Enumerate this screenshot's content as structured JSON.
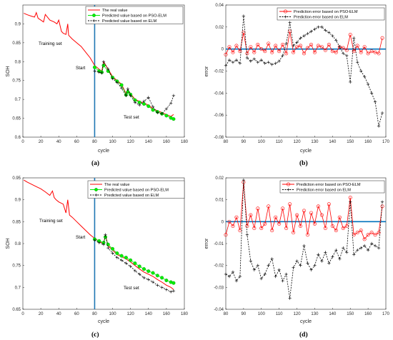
{
  "colors": {
    "real": "#ff0000",
    "pso": "#00ee00",
    "psoEdge": "#22aa22",
    "elm": "#000000",
    "err_pso": "#ff0000",
    "start_line": "#1f77b4",
    "zero_line": "#0072bd"
  },
  "chart_data": [
    {
      "type": "line",
      "panel": "a",
      "caption": "(a)",
      "xlabel": "cycle",
      "ylabel": "SOH",
      "xlim": [
        0,
        180
      ],
      "ylim": [
        0.6,
        0.95
      ],
      "xticks": [
        0,
        20,
        40,
        60,
        80,
        100,
        120,
        140,
        160,
        180
      ],
      "yticks": [
        0.6,
        0.65,
        0.7,
        0.75,
        0.8,
        0.85,
        0.9
      ],
      "legend": [
        "The real value",
        "Predicted value based on PSO-ELM",
        "Predicted value based on ELM"
      ],
      "legend_position": "top-right",
      "annotations": [
        "Training set",
        "Start",
        "Test set"
      ],
      "start_cycle": 80,
      "series": [
        {
          "name": "The real value",
          "x": [
            1,
            5,
            10,
            13,
            15,
            17,
            20,
            23,
            25,
            30,
            35,
            38,
            40,
            43,
            45,
            48,
            50,
            51,
            55,
            60,
            65,
            70,
            75,
            80,
            85,
            88,
            90,
            95,
            100,
            105,
            110,
            115,
            117,
            120,
            125,
            130,
            135,
            140,
            145,
            150,
            155,
            160,
            165,
            168
          ],
          "y": [
            0.928,
            0.924,
            0.92,
            0.918,
            0.93,
            0.915,
            0.91,
            0.905,
            0.925,
            0.91,
            0.905,
            0.9,
            0.91,
            0.88,
            0.875,
            0.872,
            0.9,
            0.87,
            0.86,
            0.85,
            0.84,
            0.825,
            0.81,
            0.79,
            0.78,
            0.775,
            0.8,
            0.78,
            0.76,
            0.75,
            0.74,
            0.715,
            0.725,
            0.715,
            0.7,
            0.695,
            0.69,
            0.685,
            0.675,
            0.67,
            0.665,
            0.66,
            0.655,
            0.66
          ]
        },
        {
          "name": "Predicted value based on PSO-ELM",
          "x": [
            80,
            85,
            88,
            90,
            95,
            100,
            105,
            110,
            115,
            117,
            120,
            125,
            130,
            135,
            140,
            145,
            150,
            155,
            160,
            165,
            168
          ],
          "y": [
            0.785,
            0.775,
            0.772,
            0.79,
            0.775,
            0.758,
            0.748,
            0.738,
            0.712,
            0.72,
            0.713,
            0.698,
            0.692,
            0.688,
            0.682,
            0.672,
            0.667,
            0.662,
            0.657,
            0.651,
            0.648
          ]
        },
        {
          "name": "Predicted value based on ELM",
          "x": [
            80,
            85,
            88,
            90,
            95,
            100,
            105,
            110,
            115,
            117,
            120,
            125,
            130,
            135,
            140,
            145,
            150,
            155,
            160,
            165,
            168
          ],
          "y": [
            0.775,
            0.772,
            0.77,
            0.8,
            0.78,
            0.755,
            0.745,
            0.73,
            0.71,
            0.728,
            0.71,
            0.692,
            0.685,
            0.695,
            0.705,
            0.68,
            0.665,
            0.662,
            0.675,
            0.69,
            0.71
          ]
        }
      ]
    },
    {
      "type": "line",
      "panel": "b",
      "caption": "(b)",
      "xlabel": "cycle",
      "ylabel": "error",
      "xlim": [
        80,
        170
      ],
      "ylim": [
        -0.08,
        0.04
      ],
      "xticks": [
        80,
        90,
        100,
        110,
        120,
        130,
        140,
        150,
        160,
        170
      ],
      "yticks": [
        -0.08,
        -0.06,
        -0.04,
        -0.02,
        0,
        0.02,
        0.04
      ],
      "legend": [
        "Prediction error based on PSO-ELM",
        "Prediction error based on ELM"
      ],
      "legend_position": "top-right",
      "series": [
        {
          "name": "Prediction error based on PSO-ELM",
          "x": [
            80,
            82,
            84,
            86,
            88,
            90,
            92,
            94,
            96,
            98,
            100,
            102,
            104,
            106,
            108,
            110,
            112,
            114,
            116,
            118,
            120,
            122,
            124,
            126,
            128,
            130,
            132,
            134,
            136,
            138,
            140,
            142,
            144,
            146,
            148,
            150,
            152,
            154,
            156,
            158,
            160,
            162,
            164,
            166,
            168
          ],
          "y": [
            -0.005,
            0.002,
            -0.003,
            0.003,
            -0.002,
            0.015,
            -0.004,
            0.002,
            -0.003,
            0.004,
            0.0,
            -0.002,
            0.005,
            -0.003,
            0.003,
            -0.002,
            0.004,
            -0.004,
            0.016,
            -0.003,
            0.002,
            0.003,
            -0.004,
            0.001,
            0.004,
            -0.003,
            0.003,
            0.002,
            -0.001,
            0.004,
            -0.002,
            -0.003,
            0.002,
            0.001,
            -0.001,
            0.013,
            -0.002,
            0.003,
            -0.003,
            0.002,
            -0.004,
            -0.002,
            -0.003,
            -0.004,
            0.01
          ]
        },
        {
          "name": "Prediction error based on ELM",
          "x": [
            80,
            82,
            84,
            86,
            88,
            90,
            92,
            94,
            96,
            98,
            100,
            102,
            104,
            106,
            108,
            110,
            112,
            114,
            116,
            118,
            120,
            122,
            124,
            126,
            128,
            130,
            132,
            134,
            136,
            138,
            140,
            142,
            144,
            146,
            148,
            150,
            152,
            154,
            156,
            158,
            160,
            162,
            164,
            166,
            168
          ],
          "y": [
            -0.015,
            -0.01,
            -0.012,
            -0.01,
            -0.013,
            0.03,
            -0.008,
            -0.011,
            -0.009,
            -0.012,
            -0.01,
            -0.013,
            -0.012,
            -0.014,
            -0.013,
            -0.011,
            -0.006,
            0.005,
            0.024,
            0.003,
            0.006,
            0.01,
            0.012,
            0.014,
            0.016,
            0.018,
            0.02,
            0.02,
            0.017,
            0.015,
            0.012,
            0.008,
            0.002,
            -0.004,
            -0.006,
            -0.03,
            0.01,
            -0.012,
            -0.02,
            -0.025,
            -0.032,
            -0.04,
            -0.048,
            -0.07,
            -0.058
          ]
        }
      ]
    },
    {
      "type": "line",
      "panel": "c",
      "caption": "(c)",
      "xlabel": "cycle",
      "ylabel": "SOH",
      "xlim": [
        0,
        180
      ],
      "ylim": [
        0.65,
        0.95
      ],
      "xticks": [
        0,
        20,
        40,
        60,
        80,
        100,
        120,
        140,
        160,
        180
      ],
      "yticks": [
        0.65,
        0.7,
        0.75,
        0.8,
        0.85,
        0.9,
        0.95
      ],
      "legend": [
        "The real value",
        "Predicted value based on PSO-ELM",
        "Predicted value based on ELM"
      ],
      "legend_position": "top-right",
      "annotations": [
        "Training set",
        "Start",
        "Test set"
      ],
      "start_cycle": 80,
      "series": [
        {
          "name": "The real value",
          "x": [
            1,
            5,
            10,
            15,
            20,
            25,
            30,
            33,
            35,
            37,
            40,
            45,
            48,
            50,
            52,
            55,
            60,
            65,
            70,
            75,
            80,
            85,
            90,
            92,
            95,
            100,
            105,
            110,
            115,
            120,
            125,
            130,
            135,
            140,
            145,
            150,
            155,
            160,
            165,
            168
          ],
          "y": [
            0.945,
            0.94,
            0.935,
            0.93,
            0.925,
            0.918,
            0.91,
            0.92,
            0.905,
            0.9,
            0.895,
            0.89,
            0.87,
            0.9,
            0.865,
            0.86,
            0.85,
            0.84,
            0.83,
            0.82,
            0.812,
            0.805,
            0.8,
            0.82,
            0.795,
            0.785,
            0.775,
            0.77,
            0.765,
            0.758,
            0.75,
            0.742,
            0.735,
            0.73,
            0.725,
            0.718,
            0.712,
            0.705,
            0.7,
            0.695
          ]
        },
        {
          "name": "Predicted value based on PSO-ELM",
          "x": [
            80,
            85,
            90,
            92,
            95,
            100,
            105,
            110,
            115,
            120,
            125,
            130,
            135,
            140,
            145,
            150,
            155,
            160,
            165,
            168
          ],
          "y": [
            0.81,
            0.806,
            0.802,
            0.815,
            0.798,
            0.788,
            0.778,
            0.772,
            0.768,
            0.762,
            0.755,
            0.748,
            0.742,
            0.737,
            0.733,
            0.727,
            0.722,
            0.716,
            0.712,
            0.71
          ]
        },
        {
          "name": "Predicted value based on ELM",
          "x": [
            80,
            85,
            90,
            92,
            95,
            100,
            105,
            110,
            115,
            120,
            125,
            130,
            135,
            140,
            145,
            150,
            155,
            160,
            165,
            168
          ],
          "y": [
            0.808,
            0.802,
            0.798,
            0.82,
            0.79,
            0.778,
            0.768,
            0.762,
            0.755,
            0.748,
            0.738,
            0.73,
            0.722,
            0.718,
            0.712,
            0.705,
            0.7,
            0.695,
            0.69,
            0.692
          ]
        }
      ]
    },
    {
      "type": "line",
      "panel": "d",
      "caption": "(d)",
      "xlabel": "cycle",
      "ylabel": "error",
      "xlim": [
        80,
        170
      ],
      "ylim": [
        -0.04,
        0.02
      ],
      "xticks": [
        80,
        90,
        100,
        110,
        120,
        130,
        140,
        150,
        160,
        170
      ],
      "yticks": [
        -0.04,
        -0.03,
        -0.02,
        -0.01,
        0,
        0.01,
        0.02
      ],
      "legend": [
        "Prediction error based on PSO-ELM",
        "Prediction error based on ELM"
      ],
      "legend_position": "top-right",
      "series": [
        {
          "name": "Prediction error based on PSO-ELM",
          "x": [
            80,
            82,
            84,
            86,
            88,
            90,
            92,
            94,
            96,
            98,
            100,
            102,
            104,
            106,
            108,
            110,
            112,
            114,
            116,
            118,
            120,
            122,
            124,
            126,
            128,
            130,
            132,
            134,
            136,
            138,
            140,
            142,
            144,
            146,
            148,
            150,
            152,
            154,
            156,
            158,
            160,
            162,
            164,
            166,
            168
          ],
          "y": [
            -0.006,
            0.0,
            -0.002,
            0.002,
            -0.004,
            0.018,
            -0.002,
            0.003,
            -0.003,
            0.006,
            -0.003,
            -0.001,
            0.007,
            -0.004,
            0.002,
            -0.001,
            0.006,
            -0.003,
            0.008,
            -0.005,
            0.003,
            -0.002,
            0.005,
            -0.006,
            0.004,
            -0.001,
            0.007,
            0.003,
            -0.003,
            0.008,
            -0.002,
            -0.004,
            0.002,
            -0.003,
            -0.002,
            0.011,
            -0.006,
            -0.005,
            -0.004,
            -0.008,
            -0.006,
            -0.005,
            -0.006,
            -0.005,
            0.007
          ]
        },
        {
          "name": "Prediction error based on ELM",
          "x": [
            80,
            82,
            84,
            86,
            88,
            90,
            92,
            94,
            96,
            98,
            100,
            102,
            104,
            106,
            108,
            110,
            112,
            114,
            116,
            118,
            120,
            122,
            124,
            126,
            128,
            130,
            132,
            134,
            136,
            138,
            140,
            142,
            144,
            146,
            148,
            150,
            152,
            154,
            156,
            158,
            160,
            162,
            164,
            166,
            168
          ],
          "y": [
            -0.024,
            -0.025,
            -0.023,
            -0.027,
            -0.025,
            0.019,
            -0.006,
            -0.018,
            -0.022,
            -0.02,
            -0.026,
            -0.024,
            -0.02,
            -0.017,
            -0.025,
            -0.022,
            -0.027,
            -0.024,
            -0.035,
            -0.021,
            -0.018,
            -0.02,
            -0.011,
            -0.019,
            -0.022,
            -0.02,
            -0.015,
            -0.018,
            -0.014,
            -0.019,
            -0.016,
            -0.013,
            -0.017,
            -0.012,
            -0.014,
            0.009,
            -0.015,
            -0.013,
            -0.012,
            -0.011,
            -0.013,
            -0.01,
            -0.011,
            -0.012,
            0.009
          ]
        }
      ]
    }
  ]
}
